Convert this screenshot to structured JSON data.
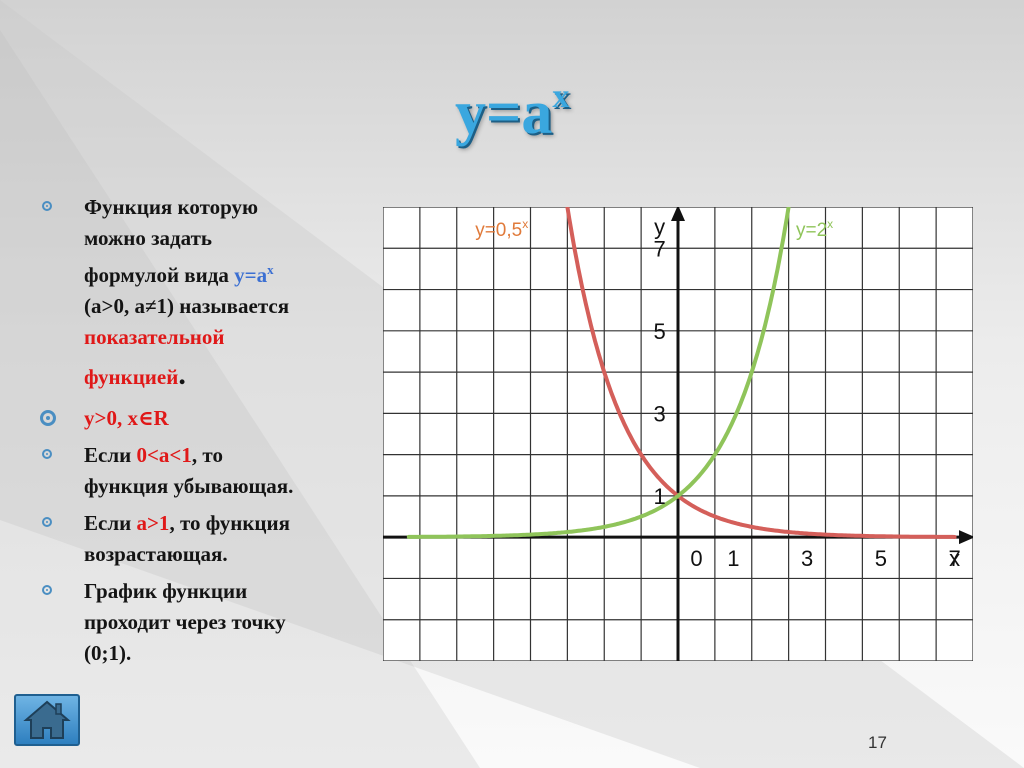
{
  "title": {
    "base": "y=a",
    "exp": "x"
  },
  "bullets": [
    {
      "lines": [
        "Функция которую",
        "можно задать"
      ],
      "formula_prefix": "формулой вида ",
      "formula": "y=a",
      "formula_exp": "x",
      "cond": "(a>0, a≠1) называется",
      "highlight_1": "показательной",
      "highlight_2": "функцией",
      "end": "."
    },
    {
      "text": "y>0, x∈R"
    },
    {
      "pre": "Если ",
      "highlight": "0<a<1",
      "post": ", то",
      "line2": "функция убывающая."
    },
    {
      "pre": "Если ",
      "highlight": "a>1",
      "post": ", то функция",
      "line2": "возрастающая."
    },
    {
      "line1": "График функции",
      "line2": "проходит через точку",
      "line3": "(0;1)."
    }
  ],
  "chart_data": {
    "type": "line",
    "x_axis_label": "x",
    "y_axis_label": "y",
    "x_tick_labels": [
      "0",
      "1",
      "3",
      "5",
      "7"
    ],
    "x_tick_values": [
      0,
      1,
      3,
      5,
      7
    ],
    "y_tick_labels": [
      "1",
      "3",
      "5",
      "7"
    ],
    "y_tick_values": [
      1,
      3,
      5,
      7
    ],
    "xlim": [
      -8,
      8
    ],
    "ylim": [
      -3,
      8
    ],
    "grid": true,
    "series": [
      {
        "name": "y=0,5",
        "exp": "x",
        "base": 0.5,
        "color": "#d45f5a"
      },
      {
        "name": "y=2",
        "exp": "x",
        "base": 2,
        "color": "#8fc45a"
      }
    ]
  },
  "page_number": "17",
  "home_icon": "home-icon"
}
